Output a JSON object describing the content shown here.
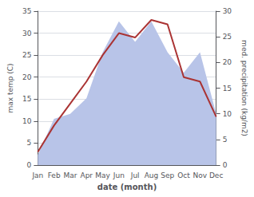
{
  "chart_data": {
    "type": "line",
    "xlabel": "date (month)",
    "ylabel": "max temp (C)",
    "y2label": "med. precipitation (kg/m2)",
    "categories": [
      "Jan",
      "Feb",
      "Mar",
      "Apr",
      "May",
      "Jun",
      "Jul",
      "Aug",
      "Sep",
      "Oct",
      "Nov",
      "Dec"
    ],
    "series": [
      {
        "type": "area",
        "color": "#b8c4e8",
        "axis": "y2",
        "values": [
          2,
          9,
          10,
          13,
          22,
          28,
          24,
          28,
          22,
          18,
          22,
          10
        ]
      },
      {
        "type": "line",
        "color": "#aa3333",
        "values": [
          3,
          9,
          14,
          19,
          25,
          30,
          29,
          33,
          32,
          20,
          19,
          11
        ]
      }
    ],
    "ylim": [
      0,
      35
    ],
    "yticks": [
      0,
      5,
      10,
      15,
      20,
      25,
      30,
      35
    ],
    "y2lim": [
      0,
      30
    ],
    "y2ticks": [
      0,
      5,
      10,
      15,
      20,
      25,
      30
    ],
    "grid": true
  }
}
